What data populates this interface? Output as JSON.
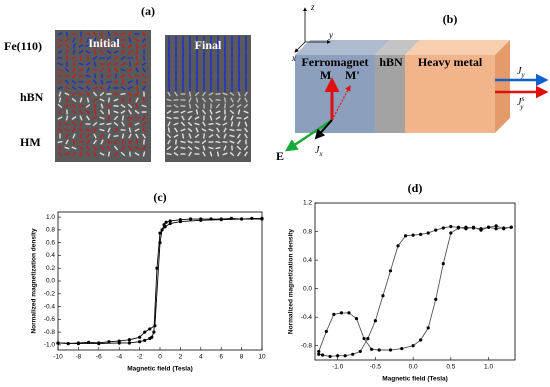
{
  "panel_a": {
    "label": "(a)",
    "rows": [
      "Fe(110)",
      "hBN",
      "HM"
    ],
    "initial": "Initial",
    "final": "Final"
  },
  "panel_b": {
    "label": "(b)",
    "layers": [
      "Ferromagnet",
      "hBN",
      "Heavy metal"
    ],
    "M": "M",
    "M_prime": "M'",
    "E": "E",
    "axes": {
      "x": "x",
      "y": "y",
      "z": "z"
    },
    "Jx": {
      "symbol": "J",
      "sub": "x"
    },
    "Jy": {
      "symbol": "J",
      "sub": "y"
    },
    "Jys": {
      "symbol": "J",
      "sub": "y",
      "sup": "s"
    }
  },
  "chart_data": [
    {
      "type": "line",
      "title": "(c)",
      "xlabel": "Magnetic field (Tesla)",
      "ylabel": "Normalized magnetization density",
      "xlim": [
        -10,
        10
      ],
      "ylim": [
        -1.08,
        1.08
      ],
      "xticks": [
        -10,
        -8,
        -6,
        -4,
        -2,
        0,
        2,
        4,
        6,
        8,
        10
      ],
      "yticks": [
        {
          "value": -1,
          "label": "-1.0"
        },
        -0.8,
        -0.6,
        -0.4,
        -0.2,
        {
          "value": 0,
          "label": "0.0"
        },
        0.2,
        0.4,
        0.6,
        0.8,
        {
          "value": 1,
          "label": "1.0"
        }
      ],
      "series": [
        {
          "color": "#000000",
          "x": [
            -10,
            -9,
            -8,
            -7,
            -6,
            -5,
            -4,
            -3,
            -2,
            -1.5,
            -1,
            -0.5,
            0,
            0.2,
            0.4,
            0.6,
            1,
            2,
            3,
            4,
            5,
            6,
            7,
            8,
            9,
            10
          ],
          "values": [
            -0.97,
            -0.98,
            -0.97,
            -0.96,
            -0.97,
            -0.95,
            -0.94,
            -0.92,
            -0.88,
            -0.8,
            -0.75,
            -0.7,
            0.6,
            0.8,
            0.88,
            0.92,
            0.94,
            0.96,
            0.97,
            0.97,
            0.97,
            0.97,
            0.98,
            0.97,
            0.98,
            0.98
          ]
        },
        {
          "color": "#000000",
          "x": [
            10,
            8,
            6,
            4,
            2,
            1,
            0.5,
            0,
            -0.3,
            -0.6,
            -0.8,
            -1,
            -1.5,
            -2,
            -3,
            -4,
            -6,
            -8,
            -10
          ],
          "values": [
            0.97,
            0.97,
            0.96,
            0.95,
            0.93,
            0.9,
            0.85,
            0.75,
            0.2,
            -0.8,
            -0.88,
            -0.9,
            -0.93,
            -0.95,
            -0.97,
            -0.97,
            -0.98,
            -0.98,
            -0.97
          ]
        }
      ]
    },
    {
      "type": "line",
      "title": "(d)",
      "xlabel": "Magnetic field (Tesla)",
      "ylabel": "Normalized magnetization density",
      "xlim": [
        -1.3,
        1.35
      ],
      "ylim": [
        -1.0,
        1.2
      ],
      "xticks": [
        {
          "value": -1,
          "label": "-1.0"
        },
        -0.5,
        {
          "value": 0,
          "label": "0.0"
        },
        0.5,
        {
          "value": 1,
          "label": "1.0"
        }
      ],
      "yticks": [
        -0.8,
        -0.4,
        {
          "value": 0,
          "label": "0.0"
        },
        0.4,
        0.8,
        1.2
      ],
      "series": [
        {
          "color": "#555555",
          "x": [
            -1.25,
            -1.15,
            -1.05,
            -0.95,
            -0.85,
            -0.75,
            -0.65,
            -0.55,
            -0.45,
            -0.3,
            -0.15,
            0,
            0.1,
            0.2,
            0.3,
            0.4,
            0.5,
            0.6,
            0.7,
            0.8,
            0.9,
            1,
            1.1,
            1.2,
            1.3
          ],
          "values": [
            -0.88,
            -0.6,
            -0.36,
            -0.34,
            -0.34,
            -0.42,
            -0.7,
            -0.85,
            -0.86,
            -0.86,
            -0.84,
            -0.8,
            -0.72,
            -0.55,
            -0.15,
            0.35,
            0.78,
            0.85,
            0.86,
            0.85,
            0.84,
            0.86,
            0.84,
            0.85,
            0.86
          ]
        },
        {
          "color": "#555555",
          "x": [
            1.3,
            1.2,
            1.1,
            1,
            0.9,
            0.8,
            0.7,
            0.6,
            0.5,
            0.4,
            0.3,
            0.2,
            0.1,
            0,
            -0.1,
            -0.2,
            -0.3,
            -0.4,
            -0.5,
            -0.6,
            -0.7,
            -0.8,
            -0.9,
            -1,
            -1.1,
            -1.2,
            -1.25
          ],
          "values": [
            0.86,
            0.84,
            0.88,
            0.86,
            0.82,
            0.86,
            0.84,
            0.86,
            0.87,
            0.85,
            0.82,
            0.78,
            0.76,
            0.75,
            0.74,
            0.6,
            0.25,
            -0.1,
            -0.45,
            -0.7,
            -0.88,
            -0.92,
            -0.94,
            -0.94,
            -0.95,
            -0.93,
            -0.92
          ]
        }
      ]
    }
  ]
}
